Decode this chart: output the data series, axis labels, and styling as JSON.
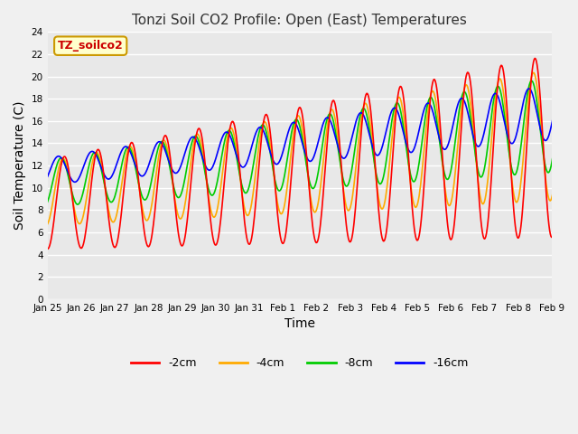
{
  "title": "Tonzi Soil CO2 Profile: Open (East) Temperatures",
  "xlabel": "Time",
  "ylabel": "Soil Temperature (C)",
  "ylim": [
    0,
    24
  ],
  "yticks": [
    0,
    2,
    4,
    6,
    8,
    10,
    12,
    14,
    16,
    18,
    20,
    22,
    24
  ],
  "xtick_labels": [
    "Jan 25",
    "Jan 26",
    "Jan 27",
    "Jan 28",
    "Jan 29",
    "Jan 30",
    "Jan 31",
    "Feb 1",
    "Feb 2",
    "Feb 3",
    "Feb 4",
    "Feb 5",
    "Feb 6",
    "Feb 7",
    "Feb 8",
    "Feb 9"
  ],
  "legend_label": "TZ_soilco2",
  "legend_box_color": "#ffffcc",
  "legend_box_edge": "#cc9900",
  "series_labels": [
    "-2cm",
    "-4cm",
    "-8cm",
    "-16cm"
  ],
  "series_colors": [
    "#ff0000",
    "#ffaa00",
    "#00cc00",
    "#0000ff"
  ],
  "bg_color": "#e8e8e8",
  "grid_color": "#ffffff",
  "title_color": "#333333",
  "fig_bg": "#f0f0f0"
}
